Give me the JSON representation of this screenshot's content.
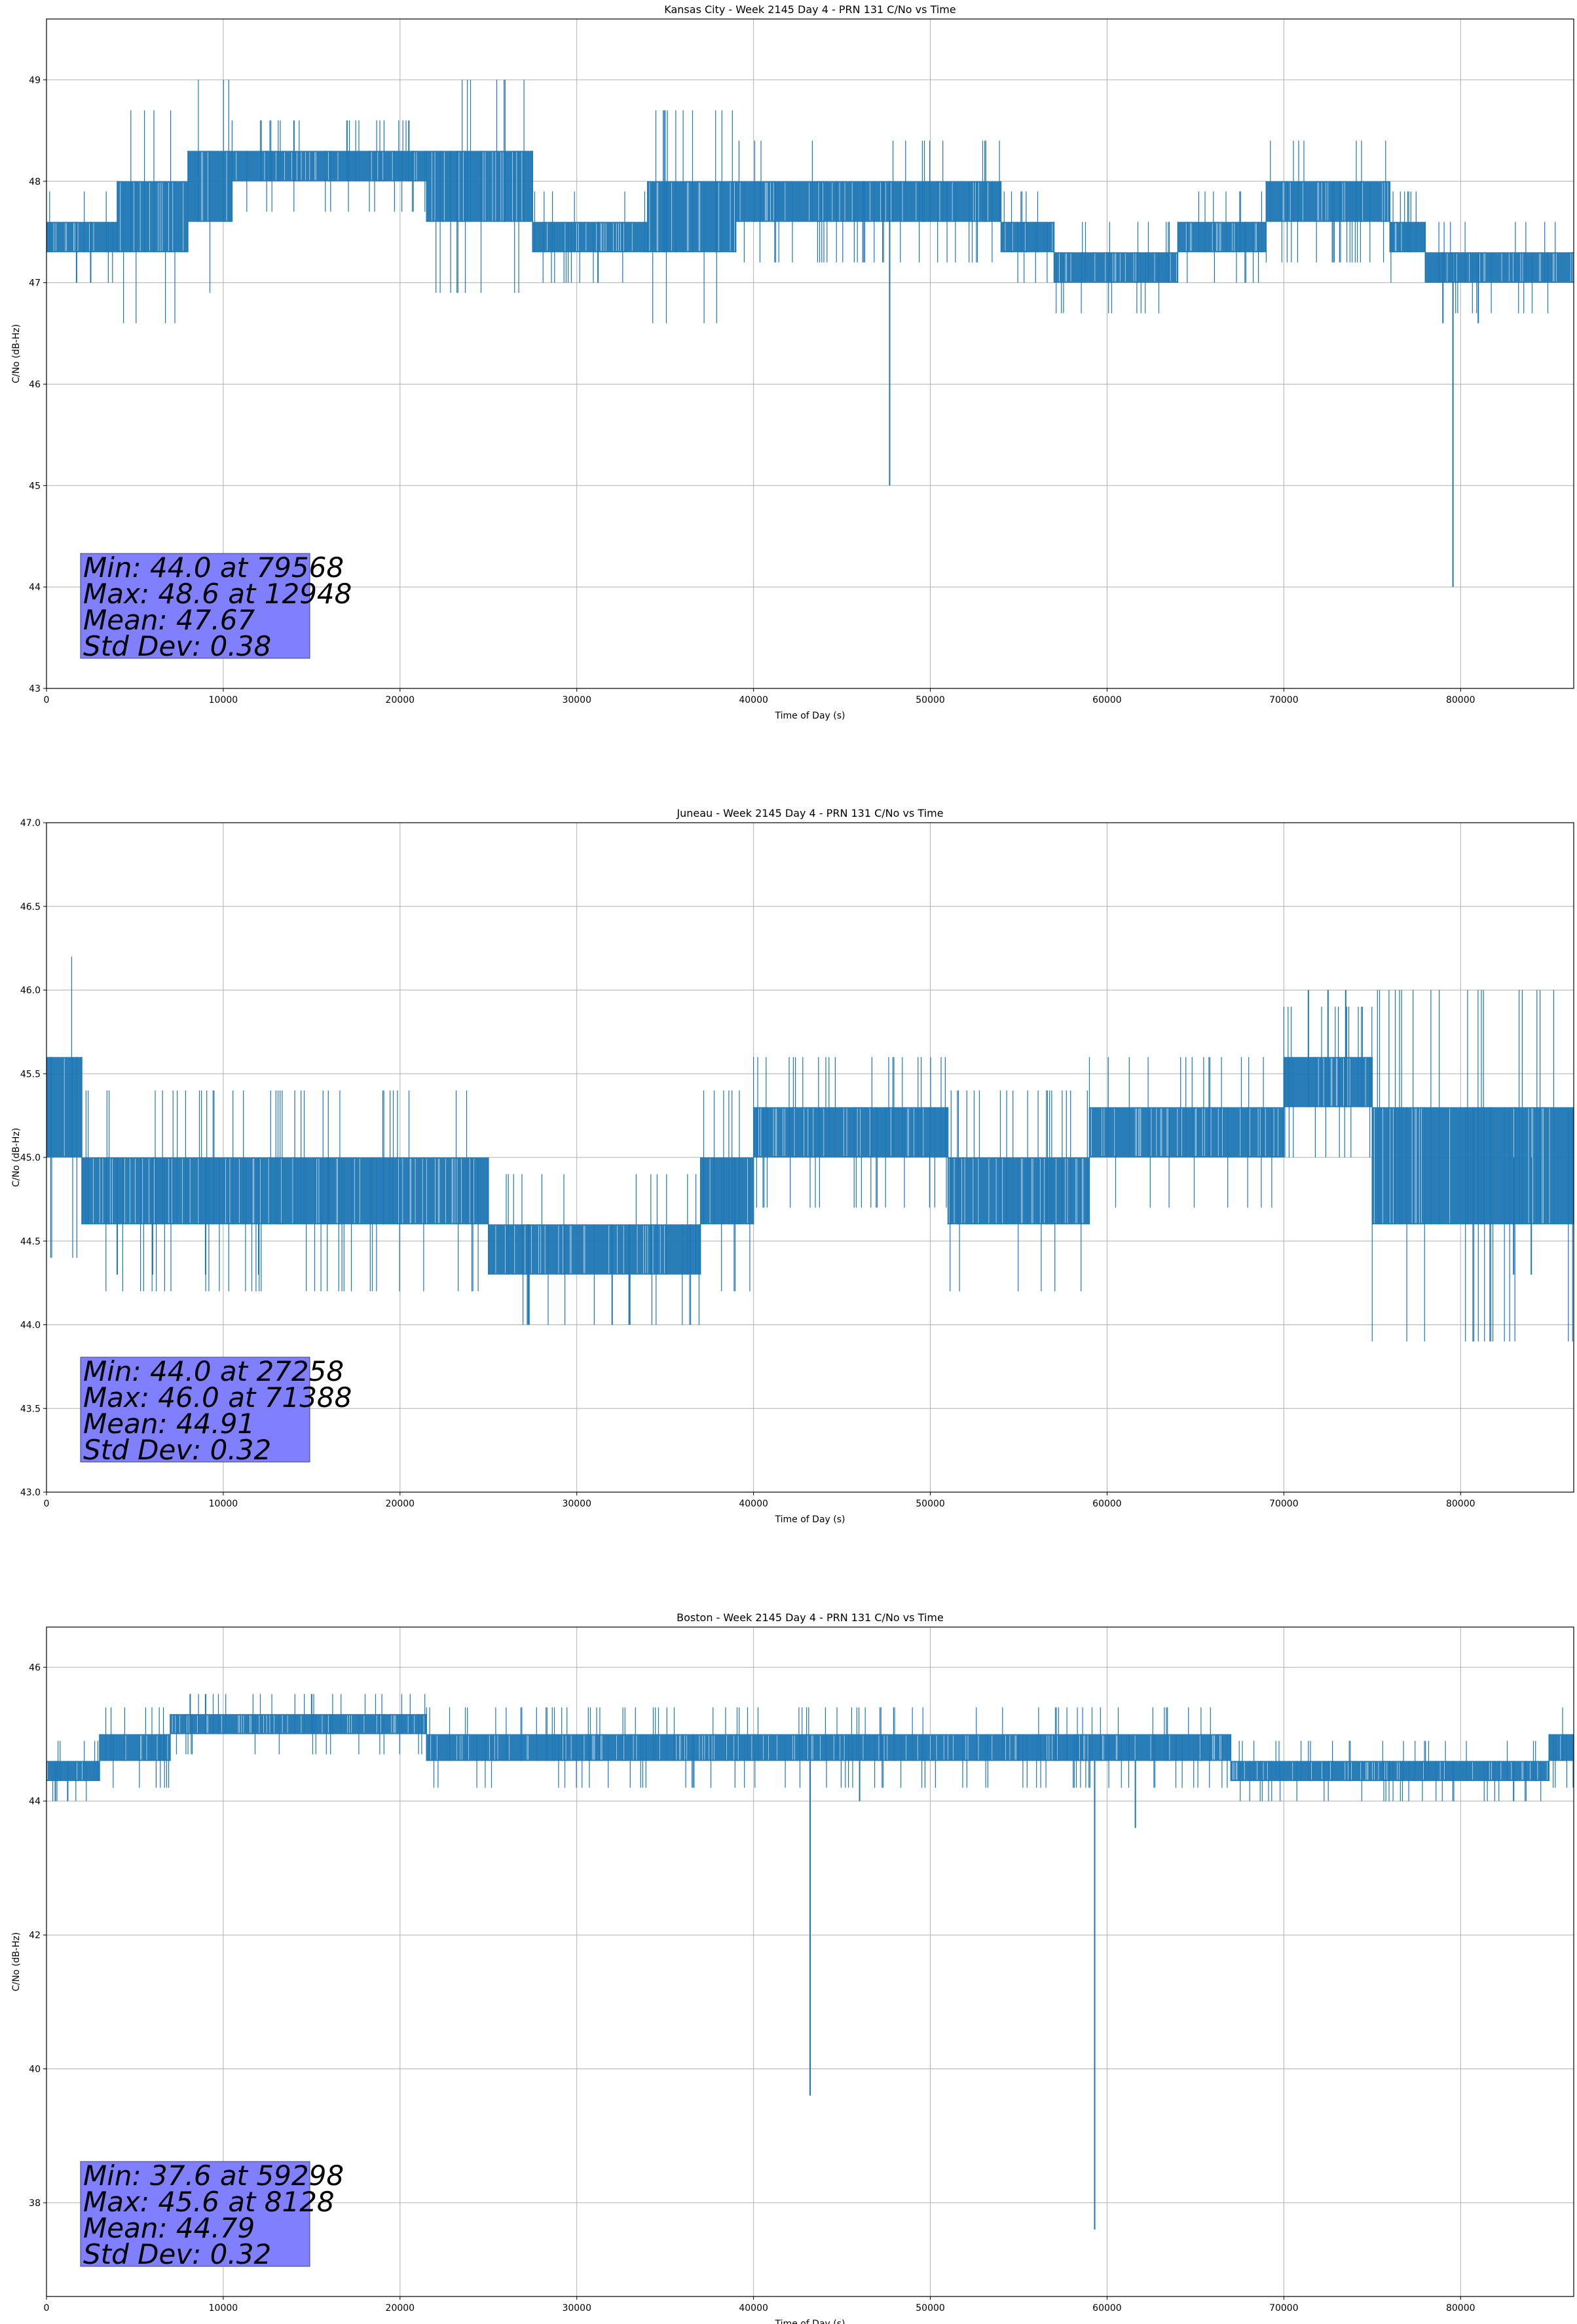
{
  "chart_data": [
    {
      "type": "line",
      "title": "Kansas City - Week 2145 Day 4 - PRN 131 C/No vs Time",
      "xlabel": "Time of Day (s)",
      "ylabel": "C/No (dB-Hz)",
      "xlim": [
        0,
        86400
      ],
      "ylim": [
        43.0,
        49.6
      ],
      "xticks": [
        0,
        10000,
        20000,
        30000,
        40000,
        50000,
        60000,
        70000,
        80000
      ],
      "yticks": [
        43,
        44,
        45,
        46,
        47,
        48,
        49
      ],
      "ytick_decimals": 0,
      "grid": true,
      "series_color": "#1f77b4",
      "stats_box_color": "#8080ff",
      "stats_text": [
        "Min: 44.0 at 79568",
        "Max: 48.6 at 12948",
        "Mean: 47.67",
        "Std Dev: 0.38"
      ],
      "series": [
        {
          "segments": [
            {
              "x": [
                0,
                4000
              ],
              "lo": 47.3,
              "hi": 47.6
            },
            {
              "x": [
                4000,
                8000
              ],
              "lo": 47.3,
              "hi": 48.0
            },
            {
              "x": [
                8000,
                10500
              ],
              "lo": 47.6,
              "hi": 48.3
            },
            {
              "x": [
                10500,
                21500
              ],
              "lo": 48.0,
              "hi": 48.3
            },
            {
              "x": [
                21500,
                27500
              ],
              "lo": 47.6,
              "hi": 48.3
            },
            {
              "x": [
                27500,
                34000
              ],
              "lo": 47.3,
              "hi": 47.6
            },
            {
              "x": [
                34000,
                39000
              ],
              "lo": 47.3,
              "hi": 48.0
            },
            {
              "x": [
                39000,
                50000
              ],
              "lo": 47.6,
              "hi": 48.0
            },
            {
              "x": [
                50000,
                54000
              ],
              "lo": 47.6,
              "hi": 48.0
            },
            {
              "x": [
                54000,
                57000
              ],
              "lo": 47.3,
              "hi": 47.6
            },
            {
              "x": [
                57000,
                64000
              ],
              "lo": 47.0,
              "hi": 47.3
            },
            {
              "x": [
                64000,
                69000
              ],
              "lo": 47.3,
              "hi": 47.6
            },
            {
              "x": [
                69000,
                76000
              ],
              "lo": 47.6,
              "hi": 48.0
            },
            {
              "x": [
                76000,
                78000
              ],
              "lo": 47.3,
              "hi": 47.6
            },
            {
              "x": [
                78000,
                86400
              ],
              "lo": 47.0,
              "hi": 47.3
            }
          ],
          "spikes": [
            {
              "x": 1700,
              "lo": 47.0,
              "hi": 47.6
            },
            {
              "x": 2500,
              "lo": 47.0,
              "hi": 47.6
            },
            {
              "x": 14000,
              "lo": 48.0,
              "hi": 48.6
            },
            {
              "x": 17000,
              "lo": 48.0,
              "hi": 48.6
            },
            {
              "x": 20500,
              "lo": 48.0,
              "hi": 48.6
            },
            {
              "x": 31200,
              "lo": 47.0,
              "hi": 47.6
            },
            {
              "x": 47700,
              "lo": 45.0,
              "hi": 48.0
            },
            {
              "x": 79568,
              "lo": 44.0,
              "hi": 47.3
            },
            {
              "x": 79000,
              "lo": 46.6,
              "hi": 47.3
            },
            {
              "x": 81000,
              "lo": 46.6,
              "hi": 47.3
            }
          ]
        }
      ]
    },
    {
      "type": "line",
      "title": "Juneau - Week 2145 Day 4 - PRN 131 C/No vs Time",
      "xlabel": "Time of Day (s)",
      "ylabel": "C/No (dB-Hz)",
      "xlim": [
        0,
        86400
      ],
      "ylim": [
        43.0,
        47.0
      ],
      "xticks": [
        0,
        10000,
        20000,
        30000,
        40000,
        50000,
        60000,
        70000,
        80000
      ],
      "yticks": [
        43.0,
        43.5,
        44.0,
        44.5,
        45.0,
        45.5,
        46.0,
        46.5,
        47.0
      ],
      "ytick_decimals": 1,
      "grid": true,
      "series_color": "#1f77b4",
      "stats_box_color": "#8080ff",
      "stats_text": [
        "Min: 44.0 at 27258",
        "Max: 46.0 at 71388",
        "Mean: 44.91",
        "Std Dev: 0.32"
      ],
      "series": [
        {
          "segments": [
            {
              "x": [
                0,
                2000
              ],
              "lo": 45.0,
              "hi": 45.6
            },
            {
              "x": [
                2000,
                8000
              ],
              "lo": 44.6,
              "hi": 45.0
            },
            {
              "x": [
                8000,
                16000
              ],
              "lo": 44.6,
              "hi": 45.0
            },
            {
              "x": [
                16000,
                25000
              ],
              "lo": 44.6,
              "hi": 45.0
            },
            {
              "x": [
                25000,
                37000
              ],
              "lo": 44.3,
              "hi": 44.6
            },
            {
              "x": [
                37000,
                40000
              ],
              "lo": 44.6,
              "hi": 45.0
            },
            {
              "x": [
                40000,
                51000
              ],
              "lo": 45.0,
              "hi": 45.3
            },
            {
              "x": [
                51000,
                59000
              ],
              "lo": 44.6,
              "hi": 45.0
            },
            {
              "x": [
                59000,
                70000
              ],
              "lo": 45.0,
              "hi": 45.3
            },
            {
              "x": [
                70000,
                75000
              ],
              "lo": 45.3,
              "hi": 45.6
            },
            {
              "x": [
                75000,
                81000
              ],
              "lo": 44.6,
              "hi": 45.3
            },
            {
              "x": [
                81000,
                86400
              ],
              "lo": 44.6,
              "hi": 45.3
            }
          ],
          "spikes": [
            {
              "x": 4000,
              "lo": 44.3,
              "hi": 45.0
            },
            {
              "x": 6000,
              "lo": 44.3,
              "hi": 45.0
            },
            {
              "x": 9000,
              "lo": 44.3,
              "hi": 45.0
            },
            {
              "x": 12000,
              "lo": 44.3,
              "hi": 45.0
            },
            {
              "x": 27258,
              "lo": 44.0,
              "hi": 44.6
            },
            {
              "x": 32000,
              "lo": 44.0,
              "hi": 44.6
            },
            {
              "x": 33000,
              "lo": 44.0,
              "hi": 44.6
            },
            {
              "x": 71388,
              "lo": 45.3,
              "hi": 46.0
            },
            {
              "x": 72500,
              "lo": 45.3,
              "hi": 46.0
            },
            {
              "x": 73500,
              "lo": 45.3,
              "hi": 46.0
            },
            {
              "x": 83000,
              "lo": 44.3,
              "hi": 45.0
            },
            {
              "x": 84000,
              "lo": 44.3,
              "hi": 45.0
            }
          ]
        }
      ]
    },
    {
      "type": "line",
      "title": "Boston - Week 2145 Day 4 - PRN 131 C/No vs Time",
      "xlabel": "Time of Day (s)",
      "ylabel": "C/No (dB-Hz)",
      "xlim": [
        0,
        86400
      ],
      "ylim": [
        36.6,
        46.6
      ],
      "xticks": [
        0,
        10000,
        20000,
        30000,
        40000,
        50000,
        60000,
        70000,
        80000
      ],
      "yticks": [
        38,
        40,
        42,
        44,
        46
      ],
      "ytick_decimals": 0,
      "grid": true,
      "series_color": "#1f77b4",
      "stats_box_color": "#8080ff",
      "stats_text": [
        "Min: 37.6 at 59298",
        "Max: 45.6 at 8128",
        "Mean: 44.79",
        "Std Dev: 0.32"
      ],
      "series": [
        {
          "segments": [
            {
              "x": [
                0,
                3000
              ],
              "lo": 44.3,
              "hi": 44.6
            },
            {
              "x": [
                3000,
                7000
              ],
              "lo": 44.6,
              "hi": 45.0
            },
            {
              "x": [
                7000,
                21500
              ],
              "lo": 45.0,
              "hi": 45.3
            },
            {
              "x": [
                21500,
                30000
              ],
              "lo": 44.6,
              "hi": 45.0
            },
            {
              "x": [
                30000,
                43000
              ],
              "lo": 44.6,
              "hi": 45.0
            },
            {
              "x": [
                43000,
                55000
              ],
              "lo": 44.6,
              "hi": 45.0
            },
            {
              "x": [
                55000,
                67000
              ],
              "lo": 44.6,
              "hi": 45.0
            },
            {
              "x": [
                67000,
                76000
              ],
              "lo": 44.3,
              "hi": 44.6
            },
            {
              "x": [
                76000,
                85000
              ],
              "lo": 44.3,
              "hi": 44.6
            },
            {
              "x": [
                85000,
                86400
              ],
              "lo": 44.6,
              "hi": 45.0
            }
          ],
          "spikes": [
            {
              "x": 500,
              "lo": 44.0,
              "hi": 44.6
            },
            {
              "x": 1200,
              "lo": 44.0,
              "hi": 44.6
            },
            {
              "x": 8128,
              "lo": 45.0,
              "hi": 45.6
            },
            {
              "x": 9000,
              "lo": 45.0,
              "hi": 45.6
            },
            {
              "x": 15000,
              "lo": 45.0,
              "hi": 45.6
            },
            {
              "x": 43200,
              "lo": 39.6,
              "hi": 44.6
            },
            {
              "x": 46000,
              "lo": 44.0,
              "hi": 44.6
            },
            {
              "x": 59298,
              "lo": 37.6,
              "hi": 44.6
            },
            {
              "x": 61600,
              "lo": 43.6,
              "hi": 44.6
            },
            {
              "x": 83000,
              "lo": 44.0,
              "hi": 44.6
            }
          ]
        }
      ]
    }
  ]
}
